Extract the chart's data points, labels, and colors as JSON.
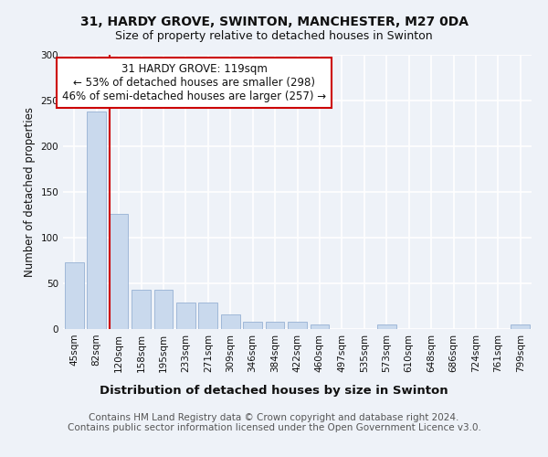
{
  "title_line1": "31, HARDY GROVE, SWINTON, MANCHESTER, M27 0DA",
  "title_line2": "Size of property relative to detached houses in Swinton",
  "xlabel": "Distribution of detached houses by size in Swinton",
  "ylabel": "Number of detached properties",
  "categories": [
    "45sqm",
    "82sqm",
    "120sqm",
    "158sqm",
    "195sqm",
    "233sqm",
    "271sqm",
    "309sqm",
    "346sqm",
    "384sqm",
    "422sqm",
    "460sqm",
    "497sqm",
    "535sqm",
    "573sqm",
    "610sqm",
    "648sqm",
    "686sqm",
    "724sqm",
    "761sqm",
    "799sqm"
  ],
  "values": [
    73,
    238,
    126,
    43,
    43,
    29,
    29,
    16,
    8,
    8,
    8,
    5,
    0,
    0,
    5,
    0,
    0,
    0,
    0,
    0,
    5
  ],
  "bar_color": "#c9d9ed",
  "bar_edgecolor": "#a0b8d8",
  "vline_index": 2,
  "vline_color": "#cc0000",
  "annotation_text": "31 HARDY GROVE: 119sqm\n← 53% of detached houses are smaller (298)\n46% of semi-detached houses are larger (257) →",
  "annotation_box_edgecolor": "#cc0000",
  "annotation_box_facecolor": "#ffffff",
  "ylim": [
    0,
    300
  ],
  "yticks": [
    0,
    50,
    100,
    150,
    200,
    250,
    300
  ],
  "footer_text": "Contains HM Land Registry data © Crown copyright and database right 2024.\nContains public sector information licensed under the Open Government Licence v3.0.",
  "background_color": "#eef2f8",
  "grid_color": "#ffffff",
  "title_fontsize": 10,
  "subtitle_fontsize": 9,
  "xlabel_fontsize": 9.5,
  "ylabel_fontsize": 8.5,
  "tick_fontsize": 7.5,
  "annotation_fontsize": 8.5,
  "footer_fontsize": 7.5
}
